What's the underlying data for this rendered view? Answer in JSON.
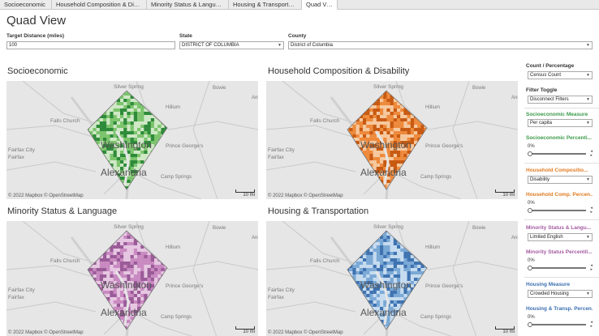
{
  "tabs": [
    {
      "label": "Socioeconomic",
      "active": false
    },
    {
      "label": "Household Composition & Disa...",
      "active": false
    },
    {
      "label": "Minority Status & Language",
      "active": false
    },
    {
      "label": "Housing & Transportation",
      "active": false
    },
    {
      "label": "Quad View",
      "active": true
    }
  ],
  "page_title": "Quad View",
  "filters": {
    "distance": {
      "label": "Target Distance (miles)",
      "value": "100"
    },
    "state": {
      "label": "State",
      "value": "DISTRICT OF COLUMBIA"
    },
    "county": {
      "label": "County",
      "value": "District of Columbia"
    }
  },
  "map_labels": {
    "silver_spring": "Silver Spring",
    "bowie": "Bowie",
    "falls_church": "Falls Church",
    "washington": "Washington",
    "fairfax_city_1": "Fairfax City",
    "fairfax_city_2": "Fairfax",
    "alexandria": "Alexandria",
    "camp_springs": "Camp Springs",
    "prince_georges": "Prince George's",
    "hillium": "Hillium",
    "ann": "Ann",
    "copyright": "© 2022 Mapbox  © OpenStreetMap",
    "scale": "10 mi"
  },
  "quads": [
    {
      "title": "Socioeconomic",
      "color_light": "#cfe8c6",
      "color_mid": "#7cc46d",
      "color_dark": "#2e8b3a"
    },
    {
      "title": "Household Composition & Disability",
      "color_light": "#f6c89e",
      "color_mid": "#ee8a3c",
      "color_dark": "#c85a12"
    },
    {
      "title": "Minority Status & Language",
      "color_light": "#e6c7e2",
      "color_mid": "#c98ac1",
      "color_dark": "#9a5b98"
    },
    {
      "title": "Housing & Transportation",
      "color_light": "#c6dbef",
      "color_mid": "#7ba9d6",
      "color_dark": "#3f73b1"
    }
  ],
  "sidebar": {
    "count_percentage": {
      "label": "Count / Percentage",
      "value": "Census Count"
    },
    "filter_toggle": {
      "label": "Filter Toggle",
      "value": "Disconnect Filters"
    },
    "socio_measure": {
      "label": "Socioeconomic Measure",
      "value": "Per capita",
      "color": "#3c9a4a"
    },
    "socio_percentile": {
      "label": "Socioeconomic Percenti...",
      "value": "0%",
      "color": "#3c9a4a"
    },
    "household_comp": {
      "label": "Household Compositio...",
      "value": "Disability",
      "color": "#e07b22"
    },
    "household_percent": {
      "label": "Household Comp. Percen...",
      "value": "0%",
      "color": "#e07b22"
    },
    "minority_lang": {
      "label": "Minority Status & Langu...",
      "value": "Limited English",
      "color": "#a45aa2"
    },
    "minority_percentile": {
      "label": "Minority Status Percentil...",
      "value": "0%",
      "color": "#a45aa2"
    },
    "housing_measure": {
      "label": "Housing Measure",
      "value": "Crowded Housing",
      "color": "#3b6fb0"
    },
    "housing_percent": {
      "label": "Housing & Transp. Percen...",
      "value": "0%",
      "color": "#3b6fb0"
    }
  }
}
